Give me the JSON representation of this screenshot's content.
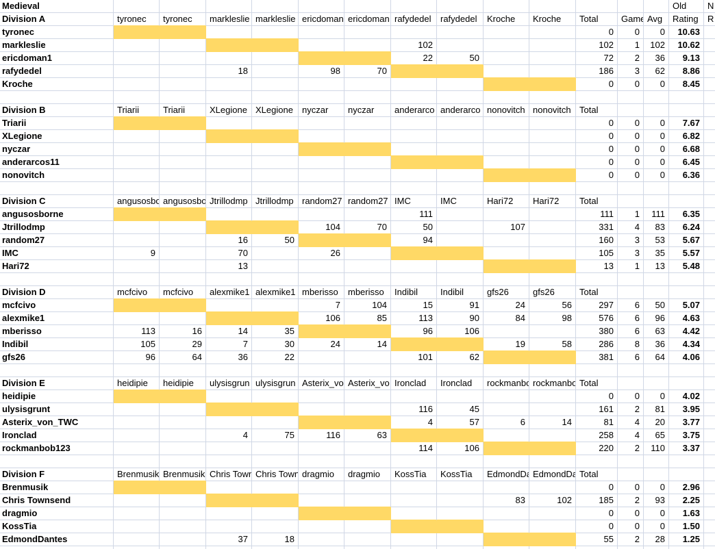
{
  "title": "Medieval",
  "summary_headers": {
    "total": "Total",
    "games": "Game",
    "avg": "Avg",
    "old_label": "Old",
    "rating_label": "Rating",
    "new_col_line1": "N",
    "new_col_line2": "R"
  },
  "colors": {
    "highlight": "#FFD966",
    "gridline": "#D0D7E5",
    "text": "#000000"
  },
  "divisions": [
    {
      "name": "Division A",
      "opponents": [
        "tyronec",
        "tyronec",
        "markleslie",
        "markleslie",
        "ericdoman",
        "ericdoman",
        "rafydedel",
        "rafydedel",
        "Kroche",
        "Kroche"
      ],
      "players": [
        {
          "name": "tyronec",
          "scores": [
            "",
            "",
            "",
            "",
            "",
            "",
            "",
            "",
            "",
            ""
          ],
          "total": "0",
          "games": "0",
          "avg": "0",
          "rating": "10.63"
        },
        {
          "name": "markleslie",
          "scores": [
            "",
            "",
            "",
            "",
            "",
            "",
            "102",
            "",
            "",
            ""
          ],
          "total": "102",
          "games": "1",
          "avg": "102",
          "rating": "10.62"
        },
        {
          "name": "ericdoman1",
          "scores": [
            "",
            "",
            "",
            "",
            "",
            "",
            "22",
            "50",
            "",
            ""
          ],
          "total": "72",
          "games": "2",
          "avg": "36",
          "rating": "9.13"
        },
        {
          "name": "rafydedel",
          "scores": [
            "",
            "",
            "18",
            "",
            "98",
            "70",
            "",
            "",
            "",
            ""
          ],
          "total": "186",
          "games": "3",
          "avg": "62",
          "rating": "8.86"
        },
        {
          "name": "Kroche",
          "scores": [
            "",
            "",
            "",
            "",
            "",
            "",
            "",
            "",
            "",
            ""
          ],
          "total": "0",
          "games": "0",
          "avg": "0",
          "rating": "8.45"
        }
      ]
    },
    {
      "name": "Division B",
      "opponents": [
        "Triarii",
        "Triarii",
        "XLegione",
        "XLegione",
        "nyczar",
        "nyczar",
        "anderarco",
        "anderarco",
        "nonovitch",
        "nonovitch"
      ],
      "players": [
        {
          "name": "Triarii",
          "scores": [
            "",
            "",
            "",
            "",
            "",
            "",
            "",
            "",
            "",
            ""
          ],
          "total": "0",
          "games": "0",
          "avg": "0",
          "rating": "7.67"
        },
        {
          "name": "XLegione",
          "scores": [
            "",
            "",
            "",
            "",
            "",
            "",
            "",
            "",
            "",
            ""
          ],
          "total": "0",
          "games": "0",
          "avg": "0",
          "rating": "6.82"
        },
        {
          "name": "nyczar",
          "scores": [
            "",
            "",
            "",
            "",
            "",
            "",
            "",
            "",
            "",
            ""
          ],
          "total": "0",
          "games": "0",
          "avg": "0",
          "rating": "6.68"
        },
        {
          "name": "anderarcos11",
          "scores": [
            "",
            "",
            "",
            "",
            "",
            "",
            "",
            "",
            "",
            ""
          ],
          "total": "0",
          "games": "0",
          "avg": "0",
          "rating": "6.45"
        },
        {
          "name": "nonovitch",
          "scores": [
            "",
            "",
            "",
            "",
            "",
            "",
            "",
            "",
            "",
            ""
          ],
          "total": "0",
          "games": "0",
          "avg": "0",
          "rating": "6.36"
        }
      ]
    },
    {
      "name": "Division C",
      "opponents": [
        "angusosbo",
        "angusosbo",
        "Jtrillodmp",
        "Jtrillodmp",
        "random27",
        "random27",
        "IMC",
        "IMC",
        "Hari72",
        "Hari72"
      ],
      "players": [
        {
          "name": "angusosborne",
          "scores": [
            "",
            "",
            "",
            "",
            "",
            "",
            "111",
            "",
            "",
            ""
          ],
          "total": "111",
          "games": "1",
          "avg": "111",
          "rating": "6.35"
        },
        {
          "name": "Jtrillodmp",
          "scores": [
            "",
            "",
            "",
            "",
            "104",
            "70",
            "50",
            "",
            "107",
            ""
          ],
          "total": "331",
          "games": "4",
          "avg": "83",
          "rating": "6.24"
        },
        {
          "name": "random27",
          "scores": [
            "",
            "",
            "16",
            "50",
            "",
            "",
            "94",
            "",
            "",
            ""
          ],
          "total": "160",
          "games": "3",
          "avg": "53",
          "rating": "5.67"
        },
        {
          "name": "IMC",
          "scores": [
            "9",
            "",
            "70",
            "",
            "26",
            "",
            "",
            "",
            "",
            ""
          ],
          "total": "105",
          "games": "3",
          "avg": "35",
          "rating": "5.57"
        },
        {
          "name": "Hari72",
          "scores": [
            "",
            "",
            "13",
            "",
            "",
            "",
            "",
            "",
            "",
            ""
          ],
          "total": "13",
          "games": "1",
          "avg": "13",
          "rating": "5.48"
        }
      ]
    },
    {
      "name": "Division D",
      "opponents": [
        "mcfcivo",
        "mcfcivo",
        "alexmike1",
        "alexmike1",
        "mberisso",
        "mberisso",
        "Indibil",
        "Indibil",
        "gfs26",
        "gfs26"
      ],
      "players": [
        {
          "name": "mcfcivo",
          "scores": [
            "",
            "",
            "",
            "",
            "7",
            "104",
            "15",
            "91",
            "24",
            "56"
          ],
          "total": "297",
          "games": "6",
          "avg": "50",
          "rating": "5.07"
        },
        {
          "name": "alexmike1",
          "scores": [
            "",
            "",
            "",
            "",
            "106",
            "85",
            "113",
            "90",
            "84",
            "98"
          ],
          "total": "576",
          "games": "6",
          "avg": "96",
          "rating": "4.63"
        },
        {
          "name": "mberisso",
          "scores": [
            "113",
            "16",
            "14",
            "35",
            "",
            "",
            "96",
            "106",
            "",
            ""
          ],
          "total": "380",
          "games": "6",
          "avg": "63",
          "rating": "4.42"
        },
        {
          "name": "Indibil",
          "scores": [
            "105",
            "29",
            "7",
            "30",
            "24",
            "14",
            "",
            "",
            "19",
            "58"
          ],
          "total": "286",
          "games": "8",
          "avg": "36",
          "rating": "4.34"
        },
        {
          "name": "gfs26",
          "scores": [
            "96",
            "64",
            "36",
            "22",
            "",
            "",
            "101",
            "62",
            "",
            ""
          ],
          "total": "381",
          "games": "6",
          "avg": "64",
          "rating": "4.06"
        }
      ]
    },
    {
      "name": "Division E",
      "opponents": [
        "heidipie",
        "heidipie",
        "ulysisgrun",
        "ulysisgrun",
        "Asterix_vo",
        "Asterix_vo",
        "Ironclad",
        "Ironclad",
        "rockmanbo",
        "rockmanbo"
      ],
      "players": [
        {
          "name": "heidipie",
          "scores": [
            "",
            "",
            "",
            "",
            "",
            "",
            "",
            "",
            "",
            ""
          ],
          "total": "0",
          "games": "0",
          "avg": "0",
          "rating": "4.02"
        },
        {
          "name": "ulysisgrunt",
          "scores": [
            "",
            "",
            "",
            "",
            "",
            "",
            "116",
            "45",
            "",
            ""
          ],
          "total": "161",
          "games": "2",
          "avg": "81",
          "rating": "3.95"
        },
        {
          "name": "Asterix_von_TWC",
          "scores": [
            "",
            "",
            "",
            "",
            "",
            "",
            "4",
            "57",
            "6",
            "14"
          ],
          "total": "81",
          "games": "4",
          "avg": "20",
          "rating": "3.77"
        },
        {
          "name": "Ironclad",
          "scores": [
            "",
            "",
            "4",
            "75",
            "116",
            "63",
            "",
            "",
            "",
            ""
          ],
          "total": "258",
          "games": "4",
          "avg": "65",
          "rating": "3.75"
        },
        {
          "name": "rockmanbob123",
          "scores": [
            "",
            "",
            "",
            "",
            "",
            "",
            "114",
            "106",
            "",
            ""
          ],
          "total": "220",
          "games": "2",
          "avg": "110",
          "rating": "3.37"
        }
      ]
    },
    {
      "name": "Division F",
      "opponents": [
        "Brenmusik",
        "Brenmusik",
        "Chris Town",
        "Chris Town",
        "dragmio",
        "dragmio",
        "KossTia",
        "KossTia",
        "EdmondDa",
        "EdmondDa"
      ],
      "players": [
        {
          "name": "Brenmusik",
          "scores": [
            "",
            "",
            "",
            "",
            "",
            "",
            "",
            "",
            "",
            ""
          ],
          "total": "0",
          "games": "0",
          "avg": "0",
          "rating": "2.96"
        },
        {
          "name": "Chris Townsend",
          "scores": [
            "",
            "",
            "",
            "",
            "",
            "",
            "",
            "",
            "83",
            "102"
          ],
          "total": "185",
          "games": "2",
          "avg": "93",
          "rating": "2.25"
        },
        {
          "name": "dragmio",
          "scores": [
            "",
            "",
            "",
            "",
            "",
            "",
            "",
            "",
            "",
            ""
          ],
          "total": "0",
          "games": "0",
          "avg": "0",
          "rating": "1.63"
        },
        {
          "name": "KossTia",
          "scores": [
            "",
            "",
            "",
            "",
            "",
            "",
            "",
            "",
            "",
            ""
          ],
          "total": "0",
          "games": "0",
          "avg": "0",
          "rating": "1.50"
        },
        {
          "name": "EdmondDantes",
          "scores": [
            "",
            "",
            "37",
            "18",
            "",
            "",
            "",
            "",
            "",
            ""
          ],
          "total": "55",
          "games": "2",
          "avg": "28",
          "rating": "1.25"
        }
      ]
    }
  ]
}
